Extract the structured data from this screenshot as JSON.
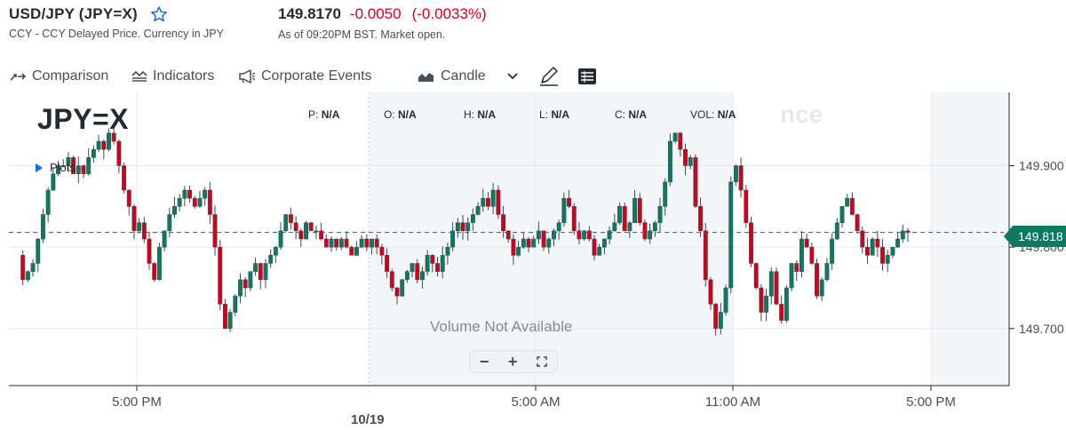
{
  "symbol": {
    "title": "USD/JPY (JPY=X)",
    "subtitle": "CCY - CCY Delayed Price. Currency in JPY",
    "star_icon": "star-outline-icon"
  },
  "quote": {
    "price": "149.8170",
    "change": "-0.0050",
    "change_pct": "(-0.0033%)",
    "as_of": "As of 09:20PM BST. Market open.",
    "negative_color": "#d0021b"
  },
  "toolbar": {
    "comparison": "Comparison",
    "indicators": "Indicators",
    "corporate_events": "Corporate Events",
    "chart_type": "Candle"
  },
  "chart": {
    "symbol": "JPY=X",
    "plots_label": "Plots",
    "ohlc": [
      {
        "key": "P:",
        "value": "N/A"
      },
      {
        "key": "O:",
        "value": "N/A"
      },
      {
        "key": "H:",
        "value": "N/A"
      },
      {
        "key": "L:",
        "value": "N/A"
      },
      {
        "key": "C:",
        "value": "N/A"
      },
      {
        "key": "VOL:",
        "value": "N/A"
      }
    ],
    "volume_message": "Volume Not Available",
    "current_price_label": "149.818",
    "watermark": "nce",
    "zoom": {
      "minus": "−",
      "plus": "+"
    }
  },
  "chart_data": {
    "type": "line",
    "title": "",
    "y_tick_labels": [
      "149.900",
      "149.800",
      "149.700"
    ],
    "x_tick_labels": [
      "5:00 PM",
      "5:00 AM",
      "11:00 AM",
      "5:00 PM"
    ],
    "date_label": "10/19",
    "current_price": 149.818,
    "ylim": [
      149.63,
      149.99
    ],
    "grid": true,
    "up_color": "#0b7a61",
    "down_color": "#d0021b",
    "series": [
      {
        "values": [
          149.79,
          149.76,
          149.77,
          149.78,
          149.81,
          149.84,
          149.87,
          149.89,
          149.9,
          149.9,
          149.91,
          149.89,
          149.9,
          149.89,
          149.91,
          149.92,
          149.93,
          149.92,
          149.94,
          149.93,
          149.9,
          149.87,
          149.85,
          149.82,
          149.83,
          149.81,
          149.78,
          149.76,
          149.8,
          149.82,
          149.84,
          149.85,
          149.86,
          149.87,
          149.86,
          149.85,
          149.86,
          149.87,
          149.84,
          149.8,
          149.73,
          149.7,
          149.72,
          149.74,
          149.76,
          149.75,
          149.77,
          149.78,
          149.76,
          149.78,
          149.79,
          149.8,
          149.82,
          149.84,
          149.83,
          149.82,
          149.81,
          149.83,
          149.82,
          149.82,
          149.81,
          149.8,
          149.81,
          149.8,
          149.81,
          149.8,
          149.79,
          149.8,
          149.81,
          149.8,
          149.81,
          149.8,
          149.79,
          149.77,
          149.75,
          149.74,
          149.76,
          149.77,
          149.78,
          149.76,
          149.77,
          149.79,
          149.78,
          149.77,
          149.79,
          149.8,
          149.82,
          149.83,
          149.82,
          149.83,
          149.84,
          149.85,
          149.86,
          149.85,
          149.87,
          149.84,
          149.82,
          149.81,
          149.79,
          149.8,
          149.81,
          149.8,
          149.81,
          149.82,
          149.8,
          149.81,
          149.82,
          149.83,
          149.86,
          149.85,
          149.82,
          149.81,
          149.82,
          149.81,
          149.79,
          149.8,
          149.81,
          149.82,
          149.83,
          149.85,
          149.82,
          149.83,
          149.86,
          149.83,
          149.81,
          149.82,
          149.83,
          149.85,
          149.88,
          149.93,
          149.94,
          149.92,
          149.9,
          149.91,
          149.85,
          149.82,
          149.76,
          149.73,
          149.7,
          149.72,
          149.75,
          149.88,
          149.9,
          149.87,
          149.83,
          149.78,
          149.75,
          149.72,
          149.74,
          149.77,
          149.73,
          149.71,
          149.75,
          149.78,
          149.77,
          149.81,
          149.8,
          149.78,
          149.74,
          149.76,
          149.78,
          149.81,
          149.83,
          149.85,
          149.86,
          149.84,
          149.82,
          149.8,
          149.79,
          149.81,
          149.8,
          149.78,
          149.79,
          149.8,
          149.81,
          149.82,
          149.818
        ]
      }
    ]
  },
  "icons": {
    "comparison": "comparison-arrows-icon",
    "indicators": "indicators-icon",
    "corporate_events": "megaphone-icon",
    "candle": "candle-chart-icon",
    "chevron": "chevron-down-icon",
    "draw": "pencil-icon",
    "table": "table-icon"
  }
}
